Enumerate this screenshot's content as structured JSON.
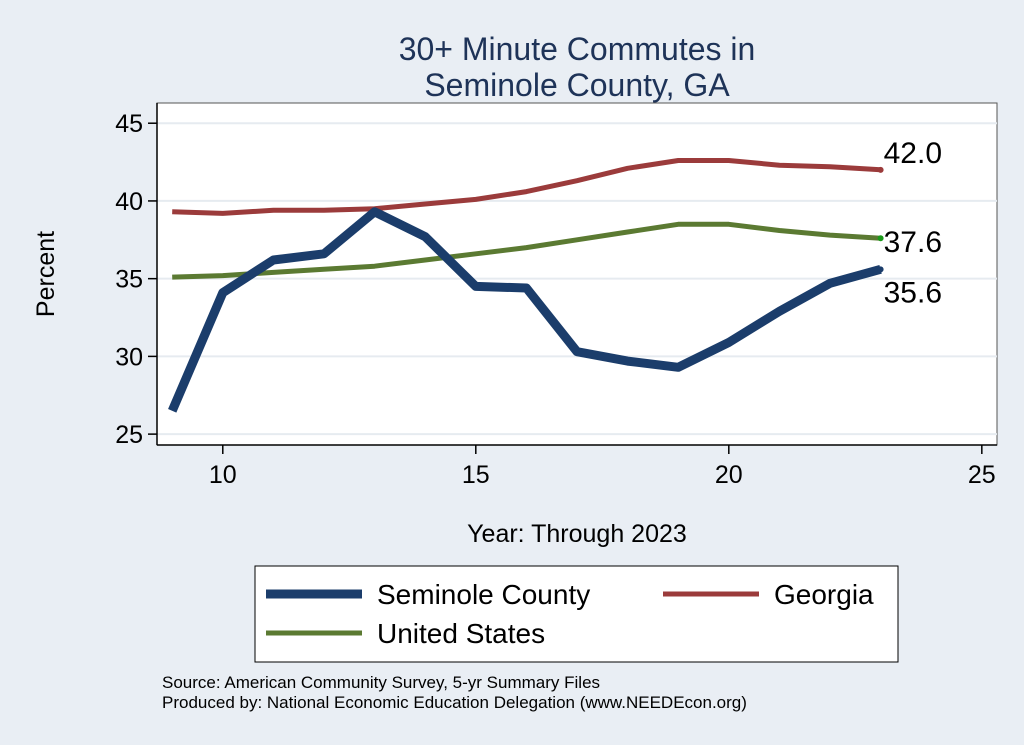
{
  "chart_data": {
    "type": "line",
    "title": [
      "30+ Minute Commutes in",
      "Seminole County, GA"
    ],
    "xlabel": "Year: Through 2023",
    "ylabel": "Percent",
    "xlim": [
      8.7,
      25.3
    ],
    "ylim": [
      24.3,
      46.3
    ],
    "xticks": [
      10,
      15,
      20,
      25
    ],
    "yticks": [
      25,
      30,
      35,
      40,
      45
    ],
    "x": [
      9,
      10,
      11,
      12,
      13,
      14,
      15,
      16,
      17,
      18,
      19,
      20,
      21,
      22,
      23
    ],
    "series": [
      {
        "name": "Seminole County",
        "color": "#1b3d6b",
        "values": [
          26.5,
          34.1,
          36.2,
          36.6,
          39.3,
          37.7,
          34.5,
          34.4,
          30.3,
          29.7,
          29.3,
          30.9,
          32.9,
          34.7,
          35.6
        ],
        "end_label": "35.6"
      },
      {
        "name": "Georgia",
        "color": "#9b3b3b",
        "values": [
          39.3,
          39.2,
          39.4,
          39.4,
          39.5,
          39.8,
          40.1,
          40.6,
          41.3,
          42.1,
          42.6,
          42.6,
          42.3,
          42.2,
          42.0
        ],
        "end_label": "42.0"
      },
      {
        "name": "United States",
        "color": "#5b7a32",
        "values": [
          35.1,
          35.2,
          35.4,
          35.6,
          35.8,
          36.2,
          36.6,
          37.0,
          37.5,
          38.0,
          38.5,
          38.5,
          38.1,
          37.8,
          37.6
        ],
        "end_label": "37.6"
      }
    ],
    "legend_position": "bottom"
  },
  "source_note": "Source: American Community Survey, 5-yr Summary Files",
  "producer_note": "Produced by: National Economic Education Delegation (www.NEEDEcon.org)"
}
